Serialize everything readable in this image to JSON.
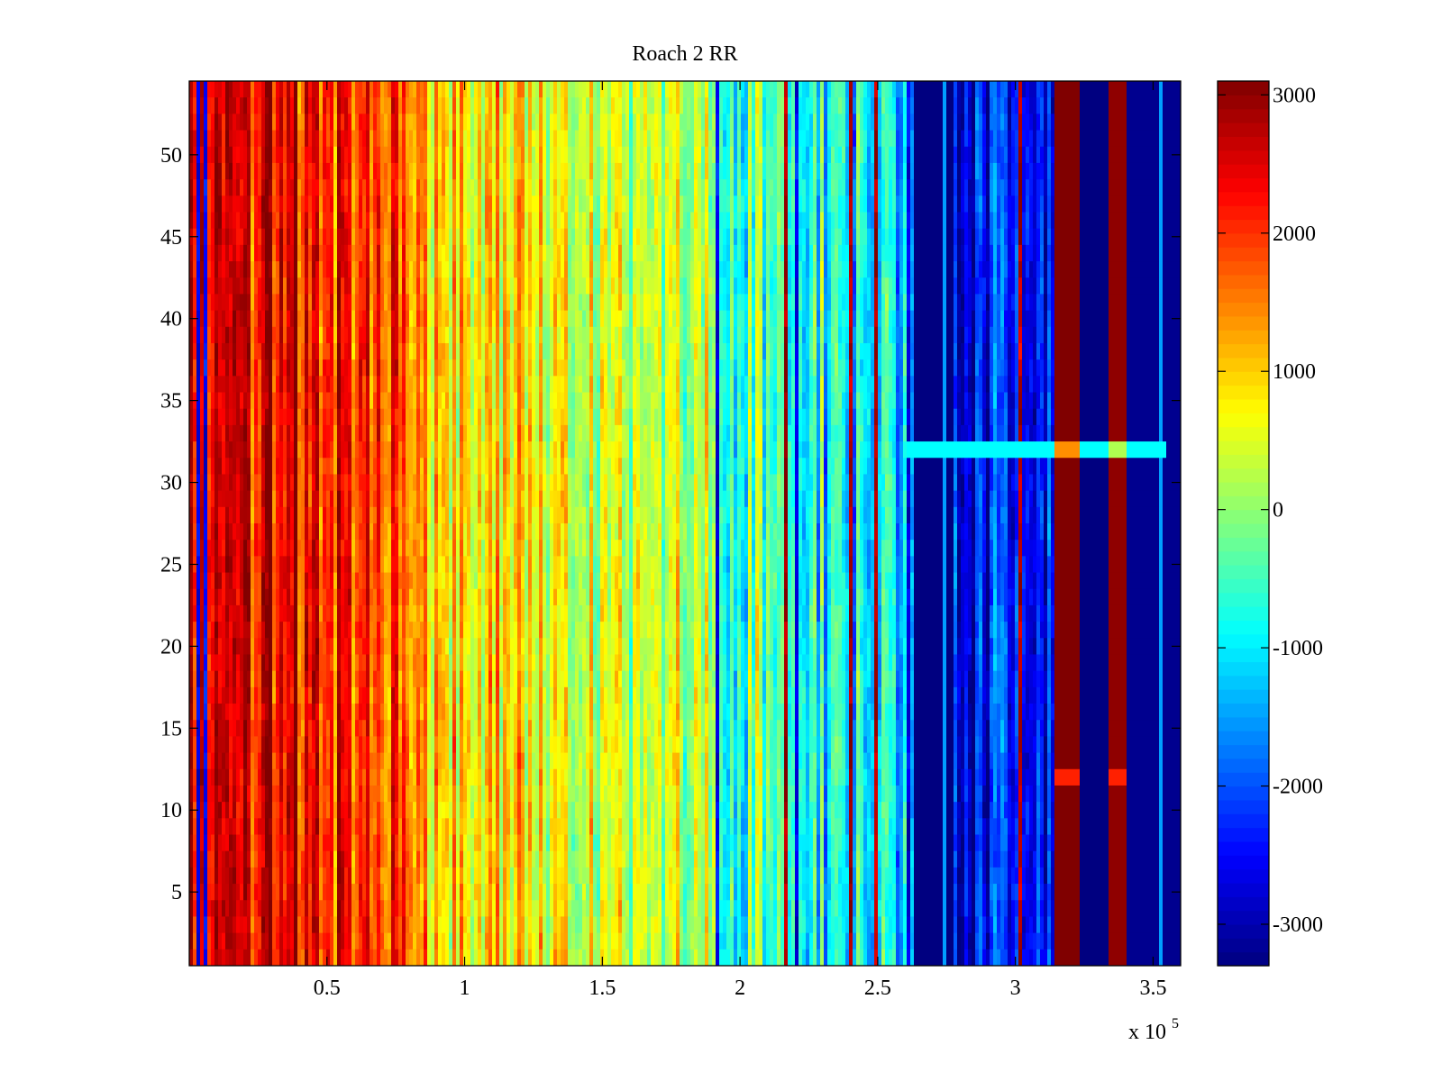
{
  "chart_data": {
    "type": "heatmap",
    "title": "Roach 2 RR",
    "xlabel": "",
    "ylabel": "",
    "x_multiplier_label": "x 10",
    "x_multiplier_exponent": "5",
    "xlim": [
      0,
      3.6
    ],
    "ylim": [
      0.5,
      54.5
    ],
    "x_ticks": [
      0.5,
      1,
      1.5,
      2,
      2.5,
      3,
      3.5
    ],
    "x_tick_labels": [
      "0.5",
      "1",
      "1.5",
      "2",
      "2.5",
      "3",
      "3.5"
    ],
    "y_ticks": [
      5,
      10,
      15,
      20,
      25,
      30,
      35,
      40,
      45,
      50
    ],
    "y_tick_labels": [
      "5",
      "10",
      "15",
      "20",
      "25",
      "30",
      "35",
      "40",
      "45",
      "50"
    ],
    "rows": 54,
    "colormap": "jet",
    "colorbar": {
      "clim": [
        -3300,
        3100
      ],
      "ticks": [
        -3000,
        -2000,
        -1000,
        0,
        1000,
        2000,
        3000
      ],
      "tick_labels": [
        "-3000",
        "-2000",
        "-1000",
        "0",
        "1000",
        "2000",
        "3000"
      ]
    },
    "column_trend": {
      "description": "approximate mean value per x-range (x in units of 10^5)",
      "segments": [
        {
          "x": [
            0.0,
            0.3
          ],
          "value": [
            2400,
            2700
          ]
        },
        {
          "x": [
            0.3,
            0.8
          ],
          "value": [
            2400,
            1500
          ]
        },
        {
          "x": [
            0.8,
            1.2
          ],
          "value": [
            1500,
            800
          ]
        },
        {
          "x": [
            1.2,
            1.75
          ],
          "value": [
            800,
            200
          ]
        },
        {
          "x": [
            1.75,
            2.3
          ],
          "value": [
            200,
            -700
          ]
        },
        {
          "x": [
            2.3,
            2.63
          ],
          "value": [
            -700,
            -1200
          ]
        },
        {
          "x": [
            2.63,
            2.78
          ],
          "value": [
            -3300,
            -3300
          ]
        },
        {
          "x": [
            2.78,
            3.14
          ],
          "value": [
            -2400,
            -2400
          ]
        },
        {
          "x": [
            3.14,
            3.23
          ],
          "value": [
            3100,
            3100
          ]
        },
        {
          "x": [
            3.23,
            3.34
          ],
          "value": [
            -3300,
            -3300
          ]
        },
        {
          "x": [
            3.34,
            3.4
          ],
          "value": [
            3000,
            3000
          ]
        },
        {
          "x": [
            3.4,
            3.6
          ],
          "value": [
            -3200,
            -3200
          ]
        }
      ]
    },
    "special_rows": [
      {
        "row": 32,
        "note": "bright band (yellow/cyan) across blocks at x 2.6-3.55"
      },
      {
        "row": 12,
        "note": "orange band in dark-red blocks at x 3.14-3.23 and 3.34-3.40"
      }
    ]
  }
}
